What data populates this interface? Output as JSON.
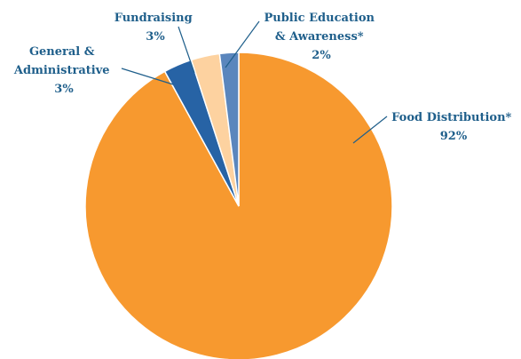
{
  "chart_data": {
    "type": "pie",
    "start": "12 o'clock, clockwise",
    "slices": [
      {
        "label": "Food Distribution*",
        "value": 92,
        "value_label": "92%",
        "color": "#f7992f"
      },
      {
        "label": "General & Administrative",
        "value": 3,
        "value_label": "3%",
        "color": "#2763a5"
      },
      {
        "label": "Fundraising",
        "value": 3,
        "value_label": "3%",
        "color": "#fdd2a0"
      },
      {
        "label": "Public Education & Awareness*",
        "value": 2,
        "value_label": "2%",
        "color": "#5a86bd"
      }
    ]
  },
  "labels": {
    "food": {
      "line1": "Food Distribution*",
      "line2": "92%"
    },
    "general": {
      "line1": "General &",
      "line2": "Administrative",
      "line3": "3%"
    },
    "fundraising": {
      "line1": "Fundraising",
      "line2": "3%"
    },
    "public": {
      "line1": "Public Education",
      "line2": "& Awareness*",
      "line3": "2%"
    }
  }
}
